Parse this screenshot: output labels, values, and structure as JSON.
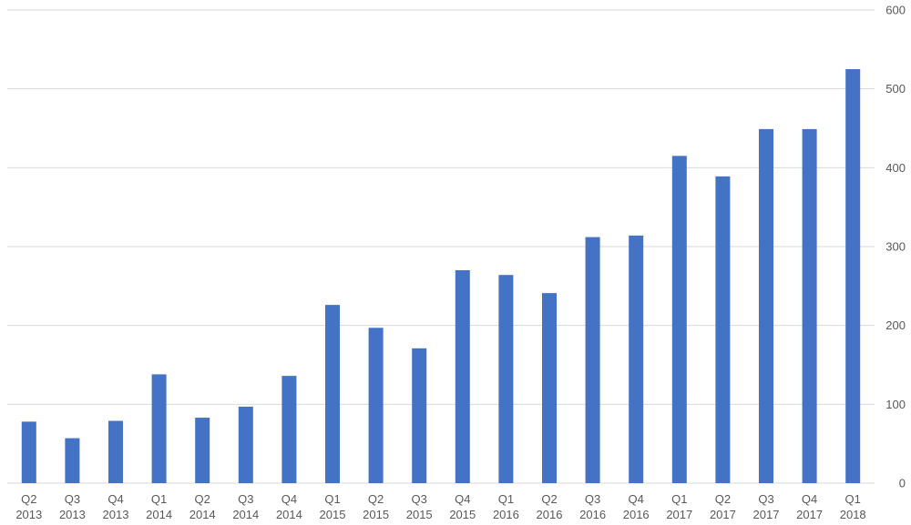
{
  "chart_data": {
    "type": "bar",
    "categories": [
      [
        "Q2",
        "2013"
      ],
      [
        "Q3",
        "2013"
      ],
      [
        "Q4",
        "2013"
      ],
      [
        "Q1",
        "2014"
      ],
      [
        "Q2",
        "2014"
      ],
      [
        "Q3",
        "2014"
      ],
      [
        "Q4",
        "2014"
      ],
      [
        "Q1",
        "2015"
      ],
      [
        "Q2",
        "2015"
      ],
      [
        "Q3",
        "2015"
      ],
      [
        "Q4",
        "2015"
      ],
      [
        "Q1",
        "2016"
      ],
      [
        "Q2",
        "2016"
      ],
      [
        "Q3",
        "2016"
      ],
      [
        "Q4",
        "2016"
      ],
      [
        "Q1",
        "2017"
      ],
      [
        "Q2",
        "2017"
      ],
      [
        "Q3",
        "2017"
      ],
      [
        "Q4",
        "2017"
      ],
      [
        "Q1",
        "2018"
      ]
    ],
    "values": [
      78,
      57,
      79,
      138,
      83,
      97,
      136,
      226,
      197,
      171,
      270,
      264,
      241,
      312,
      314,
      415,
      389,
      449,
      449,
      525
    ],
    "ylim": [
      0,
      600
    ],
    "yticks": [
      0,
      100,
      200,
      300,
      400,
      500,
      600
    ],
    "y_axis_side": "right",
    "grid": true,
    "bar_color": "#4472c4",
    "grid_color": "#d9d9d9",
    "label_color": "#595959"
  }
}
